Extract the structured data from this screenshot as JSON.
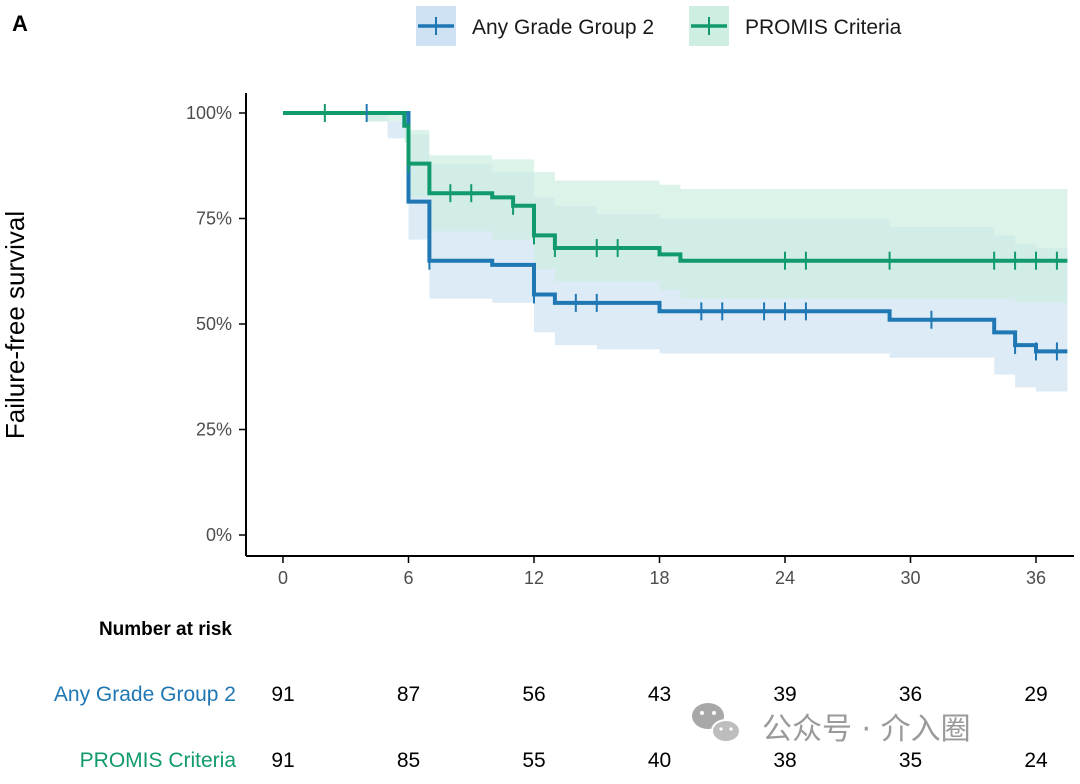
{
  "chart_data": {
    "type": "line",
    "panel_label": "A",
    "title": "",
    "ylabel": "Failure-free survival",
    "xlabel": "",
    "xlim": [
      -3,
      37.5
    ],
    "ylim": [
      0,
      100
    ],
    "x_ticks": [
      0,
      6,
      12,
      18,
      24,
      30,
      36
    ],
    "y_ticks": [
      0,
      25,
      50,
      75,
      100
    ],
    "y_tick_labels": [
      "0%",
      "25%",
      "50%",
      "75%",
      "100%"
    ],
    "legend_position": "top",
    "series": [
      {
        "name": "Any Grade Group 2",
        "color": "#1f77b4",
        "band_color": "#cfe2f3",
        "steps": [
          [
            0,
            100
          ],
          [
            6,
            79
          ],
          [
            7,
            65
          ],
          [
            10,
            64
          ],
          [
            12,
            57
          ],
          [
            13,
            55
          ],
          [
            18,
            53
          ],
          [
            29,
            51
          ],
          [
            34,
            48
          ],
          [
            35,
            45
          ],
          [
            36,
            43.5
          ],
          [
            37.5,
            43.5
          ]
        ],
        "band": [
          [
            0,
            100,
            100
          ],
          [
            4,
            100,
            98
          ],
          [
            5,
            98,
            94
          ],
          [
            6,
            95,
            70
          ],
          [
            7,
            88,
            56
          ],
          [
            10,
            86,
            55
          ],
          [
            12,
            80,
            48
          ],
          [
            13,
            78,
            45
          ],
          [
            15,
            76,
            44
          ],
          [
            18,
            75,
            43
          ],
          [
            29,
            73,
            42
          ],
          [
            34,
            71,
            38
          ],
          [
            35,
            69,
            35
          ],
          [
            36,
            68,
            34
          ],
          [
            37.5,
            68,
            34
          ]
        ],
        "censor_x": [
          4,
          7,
          12,
          14,
          15,
          20,
          21,
          23,
          24,
          25,
          31,
          35,
          36,
          37
        ]
      },
      {
        "name": "PROMIS Criteria",
        "color": "#119a6e",
        "band_color": "#cdeee1",
        "steps": [
          [
            0,
            100
          ],
          [
            5.8,
            97
          ],
          [
            6,
            88
          ],
          [
            7,
            81
          ],
          [
            10,
            80
          ],
          [
            11,
            78
          ],
          [
            12,
            71
          ],
          [
            13,
            68
          ],
          [
            18,
            66.5
          ],
          [
            19,
            65
          ],
          [
            37.5,
            65
          ]
        ],
        "band": [
          [
            0,
            100,
            100
          ],
          [
            4,
            100,
            98
          ],
          [
            5.8,
            100,
            93
          ],
          [
            6,
            96,
            80
          ],
          [
            7,
            90,
            72
          ],
          [
            10,
            89,
            70
          ],
          [
            12,
            86,
            63
          ],
          [
            13,
            84,
            60
          ],
          [
            18,
            83,
            58
          ],
          [
            19,
            82,
            56
          ],
          [
            30,
            82,
            56
          ],
          [
            35,
            82,
            55
          ],
          [
            37.5,
            82,
            55
          ]
        ],
        "censor_x": [
          2,
          6,
          8,
          9,
          11,
          12,
          13,
          15,
          16,
          24,
          25,
          29,
          34,
          35,
          36,
          37
        ]
      }
    ],
    "risk_table": {
      "title": "Number at risk",
      "times": [
        0,
        6,
        12,
        18,
        24,
        30,
        36
      ],
      "rows": [
        {
          "label": "Any Grade Group 2",
          "color": "#1f77b4",
          "values": [
            "91",
            "87",
            "56",
            "43",
            "39",
            "36",
            "29"
          ]
        },
        {
          "label": "PROMIS Criteria",
          "color": "#119a6e",
          "values": [
            "91",
            "85",
            "55",
            "40",
            "38",
            "35",
            "24"
          ]
        }
      ]
    }
  },
  "watermark": {
    "text": "公众号 · 介入圈"
  }
}
